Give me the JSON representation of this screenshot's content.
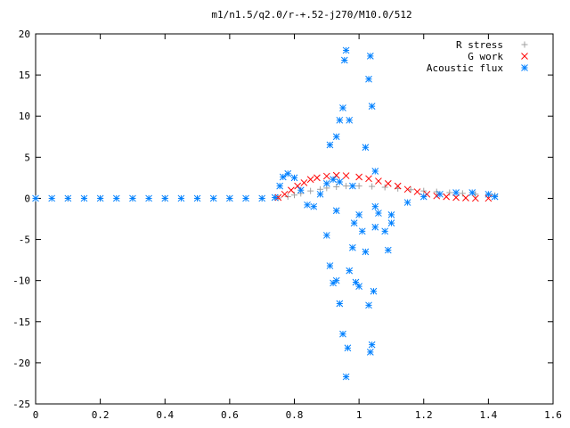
{
  "chart_data": {
    "type": "scatter",
    "title": "m1/n1.5/q2.0/r-+.52-j270/M10.0/512",
    "xlabel": "",
    "ylabel": "",
    "xlim": [
      0,
      1.6
    ],
    "ylim": [
      -25,
      20
    ],
    "x_ticks": [
      0,
      0.2,
      0.4,
      0.6,
      0.8,
      1,
      1.2,
      1.4,
      1.6
    ],
    "x_tick_labels": [
      "0",
      "0.2",
      "0.4",
      "0.6",
      "0.8",
      "1",
      "1.2",
      "1.4",
      "1.6"
    ],
    "y_ticks": [
      -25,
      -20,
      -15,
      -10,
      -5,
      0,
      5,
      10,
      15,
      20
    ],
    "y_tick_labels": [
      "-25",
      "-20",
      "-15",
      "-10",
      "-5",
      "0",
      "5",
      "10",
      "15",
      "20"
    ],
    "grid": false,
    "legend_position": "top-right",
    "series": [
      {
        "name": "R stress",
        "marker": "plus",
        "color": "#a0a0a0",
        "points": [
          [
            0,
            0
          ],
          [
            0.1,
            0
          ],
          [
            0.2,
            0
          ],
          [
            0.3,
            0
          ],
          [
            0.4,
            0
          ],
          [
            0.5,
            0
          ],
          [
            0.6,
            0
          ],
          [
            0.7,
            0
          ],
          [
            0.75,
            0.05
          ],
          [
            0.78,
            0.2
          ],
          [
            0.8,
            0.4
          ],
          [
            0.82,
            0.6
          ],
          [
            0.85,
            0.9
          ],
          [
            0.88,
            1.1
          ],
          [
            0.9,
            1.25
          ],
          [
            0.93,
            1.4
          ],
          [
            0.96,
            1.5
          ],
          [
            1.0,
            1.5
          ],
          [
            1.04,
            1.45
          ],
          [
            1.08,
            1.35
          ],
          [
            1.12,
            1.2
          ],
          [
            1.16,
            1.05
          ],
          [
            1.2,
            0.9
          ],
          [
            1.24,
            0.8
          ],
          [
            1.28,
            0.7
          ],
          [
            1.32,
            0.6
          ],
          [
            1.36,
            0.5
          ],
          [
            1.4,
            0.4
          ],
          [
            1.42,
            0.35
          ]
        ]
      },
      {
        "name": "G work",
        "marker": "cross",
        "color": "#ff0000",
        "points": [
          [
            0.75,
            0.1
          ],
          [
            0.77,
            0.5
          ],
          [
            0.79,
            1.0
          ],
          [
            0.81,
            1.5
          ],
          [
            0.83,
            1.9
          ],
          [
            0.85,
            2.3
          ],
          [
            0.87,
            2.5
          ],
          [
            0.9,
            2.7
          ],
          [
            0.93,
            2.8
          ],
          [
            0.96,
            2.75
          ],
          [
            1.0,
            2.6
          ],
          [
            1.03,
            2.4
          ],
          [
            1.06,
            2.1
          ],
          [
            1.09,
            1.8
          ],
          [
            1.12,
            1.5
          ],
          [
            1.15,
            1.1
          ],
          [
            1.18,
            0.8
          ],
          [
            1.21,
            0.5
          ],
          [
            1.24,
            0.3
          ],
          [
            1.27,
            0.2
          ],
          [
            1.3,
            0.1
          ],
          [
            1.33,
            0.05
          ],
          [
            1.36,
            0.0
          ],
          [
            1.4,
            0.0
          ]
        ]
      },
      {
        "name": "Acoustic flux",
        "marker": "star",
        "color": "#0080ff",
        "points": [
          [
            0,
            0
          ],
          [
            0.05,
            0
          ],
          [
            0.1,
            0
          ],
          [
            0.15,
            0
          ],
          [
            0.2,
            0
          ],
          [
            0.25,
            0
          ],
          [
            0.3,
            0
          ],
          [
            0.35,
            0
          ],
          [
            0.4,
            0
          ],
          [
            0.45,
            0
          ],
          [
            0.5,
            0
          ],
          [
            0.55,
            0
          ],
          [
            0.6,
            0
          ],
          [
            0.65,
            0
          ],
          [
            0.7,
            0
          ],
          [
            0.74,
            0.1
          ],
          [
            0.755,
            1.5
          ],
          [
            0.765,
            2.6
          ],
          [
            0.78,
            3.0
          ],
          [
            0.8,
            2.5
          ],
          [
            0.82,
            1.0
          ],
          [
            0.84,
            -0.8
          ],
          [
            0.86,
            -1.0
          ],
          [
            0.88,
            0.5
          ],
          [
            0.9,
            1.8
          ],
          [
            0.92,
            2.3
          ],
          [
            0.94,
            2.0
          ],
          [
            0.98,
            1.5
          ],
          [
            1.05,
            -1.0
          ],
          [
            1.1,
            -2.0
          ],
          [
            1.15,
            -0.5
          ],
          [
            1.2,
            0.2
          ],
          [
            1.25,
            0.5
          ],
          [
            1.3,
            0.7
          ],
          [
            1.35,
            0.7
          ],
          [
            1.4,
            0.5
          ],
          [
            1.42,
            0.2
          ],
          [
            0.91,
            6.5
          ],
          [
            0.93,
            7.5
          ],
          [
            0.94,
            9.5
          ],
          [
            0.95,
            11.0
          ],
          [
            0.955,
            16.8
          ],
          [
            0.96,
            18.0
          ],
          [
            0.97,
            9.5
          ],
          [
            1.02,
            6.2
          ],
          [
            1.03,
            14.5
          ],
          [
            1.035,
            17.3
          ],
          [
            1.04,
            11.2
          ],
          [
            1.05,
            3.3
          ],
          [
            0.9,
            -4.5
          ],
          [
            0.91,
            -8.2
          ],
          [
            0.92,
            -10.3
          ],
          [
            0.93,
            -10.0
          ],
          [
            0.94,
            -12.8
          ],
          [
            0.95,
            -16.5
          ],
          [
            0.96,
            -21.7
          ],
          [
            0.965,
            -18.2
          ],
          [
            0.97,
            -8.8
          ],
          [
            0.98,
            -6.0
          ],
          [
            0.99,
            -10.2
          ],
          [
            1.0,
            -10.7
          ],
          [
            1.01,
            -4.0
          ],
          [
            1.02,
            -6.5
          ],
          [
            1.03,
            -13.0
          ],
          [
            1.035,
            -18.7
          ],
          [
            1.04,
            -17.8
          ],
          [
            1.045,
            -11.3
          ],
          [
            1.05,
            -3.5
          ],
          [
            1.08,
            -4.0
          ],
          [
            1.09,
            -6.3
          ],
          [
            1.1,
            -3.0
          ],
          [
            0.985,
            -3.0
          ],
          [
            1.0,
            -2.0
          ],
          [
            0.93,
            -1.5
          ],
          [
            1.06,
            -1.8
          ]
        ]
      }
    ]
  }
}
